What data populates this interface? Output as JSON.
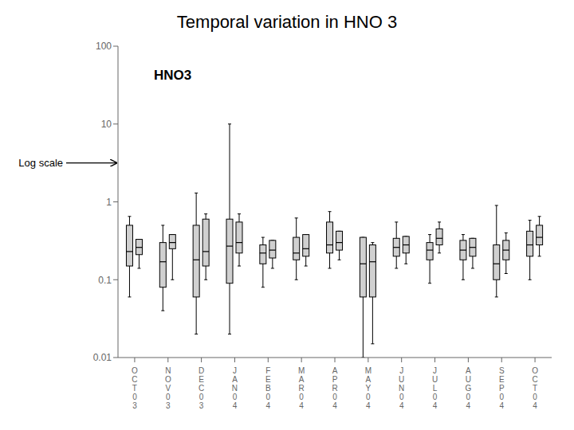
{
  "chart_data": {
    "type": "box",
    "title": "Temporal variation in HNO 3",
    "annotations": [
      "HNO3"
    ],
    "ylabel": "Log scale",
    "log": "y",
    "grid": false,
    "color": "#d0d0d0",
    "ylim": [
      0.01,
      100
    ],
    "yticks": [
      0.01,
      0.1,
      1,
      10,
      100
    ],
    "categories": [
      "O\nC\nT\n0\n3",
      "N\nO\nV\n0\n3",
      "D\nE\nC\n0\n3",
      "J\nA\nN\n0\n4",
      "F\nE\nB\n0\n4",
      "M\nA\nR\n0\n4",
      "A\nP\nR\n0\n4",
      "M\nA\nY\n0\n4",
      "J\nU\nN\n0\n4",
      "J\nU\nL\n0\n4",
      "A\nU\nG\n0\n4",
      "S\nE\nP\n0\n4",
      "O\nC\nT\n0\n4"
    ],
    "boxes": [
      [
        {
          "whisker_low": 0.06,
          "q1": 0.15,
          "median": 0.23,
          "q3": 0.5,
          "whisker_high": 0.65
        },
        {
          "whisker_low": 0.14,
          "q1": 0.21,
          "median": 0.26,
          "q3": 0.33,
          "whisker_high": 0.33
        }
      ],
      [
        {
          "whisker_low": 0.04,
          "q1": 0.08,
          "median": 0.17,
          "q3": 0.3,
          "whisker_high": 0.5
        },
        {
          "whisker_low": 0.1,
          "q1": 0.25,
          "median": 0.3,
          "q3": 0.38,
          "whisker_high": 0.38
        }
      ],
      [
        {
          "whisker_low": 0.02,
          "q1": 0.06,
          "median": 0.18,
          "q3": 0.5,
          "whisker_high": 1.3
        },
        {
          "whisker_low": 0.1,
          "q1": 0.15,
          "median": 0.23,
          "q3": 0.6,
          "whisker_high": 0.7
        }
      ],
      [
        {
          "whisker_low": 0.02,
          "q1": 0.09,
          "median": 0.27,
          "q3": 0.6,
          "whisker_high": 10.0
        },
        {
          "whisker_low": 0.15,
          "q1": 0.22,
          "median": 0.3,
          "q3": 0.55,
          "whisker_high": 0.7
        }
      ],
      [
        {
          "whisker_low": 0.08,
          "q1": 0.16,
          "median": 0.22,
          "q3": 0.28,
          "whisker_high": 0.35
        },
        {
          "whisker_low": 0.14,
          "q1": 0.19,
          "median": 0.24,
          "q3": 0.32,
          "whisker_high": 0.32
        }
      ],
      [
        {
          "whisker_low": 0.1,
          "q1": 0.18,
          "median": 0.22,
          "q3": 0.35,
          "whisker_high": 0.62
        },
        {
          "whisker_low": 0.15,
          "q1": 0.2,
          "median": 0.25,
          "q3": 0.38,
          "whisker_high": 0.38
        }
      ],
      [
        {
          "whisker_low": 0.14,
          "q1": 0.22,
          "median": 0.28,
          "q3": 0.55,
          "whisker_high": 0.75
        },
        {
          "whisker_low": 0.18,
          "q1": 0.24,
          "median": 0.3,
          "q3": 0.42,
          "whisker_high": 0.42
        }
      ],
      [
        {
          "whisker_low": 0.01,
          "q1": 0.06,
          "median": 0.16,
          "q3": 0.35,
          "whisker_high": 0.35
        },
        {
          "whisker_low": 0.015,
          "q1": 0.06,
          "median": 0.17,
          "q3": 0.28,
          "whisker_high": 0.3
        }
      ],
      [
        {
          "whisker_low": 0.14,
          "q1": 0.2,
          "median": 0.26,
          "q3": 0.34,
          "whisker_high": 0.55
        },
        {
          "whisker_low": 0.16,
          "q1": 0.22,
          "median": 0.28,
          "q3": 0.36,
          "whisker_high": 0.36
        }
      ],
      [
        {
          "whisker_low": 0.09,
          "q1": 0.18,
          "median": 0.24,
          "q3": 0.3,
          "whisker_high": 0.38
        },
        {
          "whisker_low": 0.22,
          "q1": 0.28,
          "median": 0.34,
          "q3": 0.45,
          "whisker_high": 0.55
        }
      ],
      [
        {
          "whisker_low": 0.1,
          "q1": 0.18,
          "median": 0.24,
          "q3": 0.32,
          "whisker_high": 0.38
        },
        {
          "whisker_low": 0.14,
          "q1": 0.2,
          "median": 0.26,
          "q3": 0.34,
          "whisker_high": 0.34
        }
      ],
      [
        {
          "whisker_low": 0.06,
          "q1": 0.1,
          "median": 0.16,
          "q3": 0.28,
          "whisker_high": 0.9
        },
        {
          "whisker_low": 0.12,
          "q1": 0.18,
          "median": 0.24,
          "q3": 0.32,
          "whisker_high": 0.4
        }
      ],
      [
        {
          "whisker_low": 0.1,
          "q1": 0.2,
          "median": 0.28,
          "q3": 0.42,
          "whisker_high": 0.58
        },
        {
          "whisker_low": 0.2,
          "q1": 0.28,
          "median": 0.35,
          "q3": 0.5,
          "whisker_high": 0.65
        }
      ]
    ]
  }
}
